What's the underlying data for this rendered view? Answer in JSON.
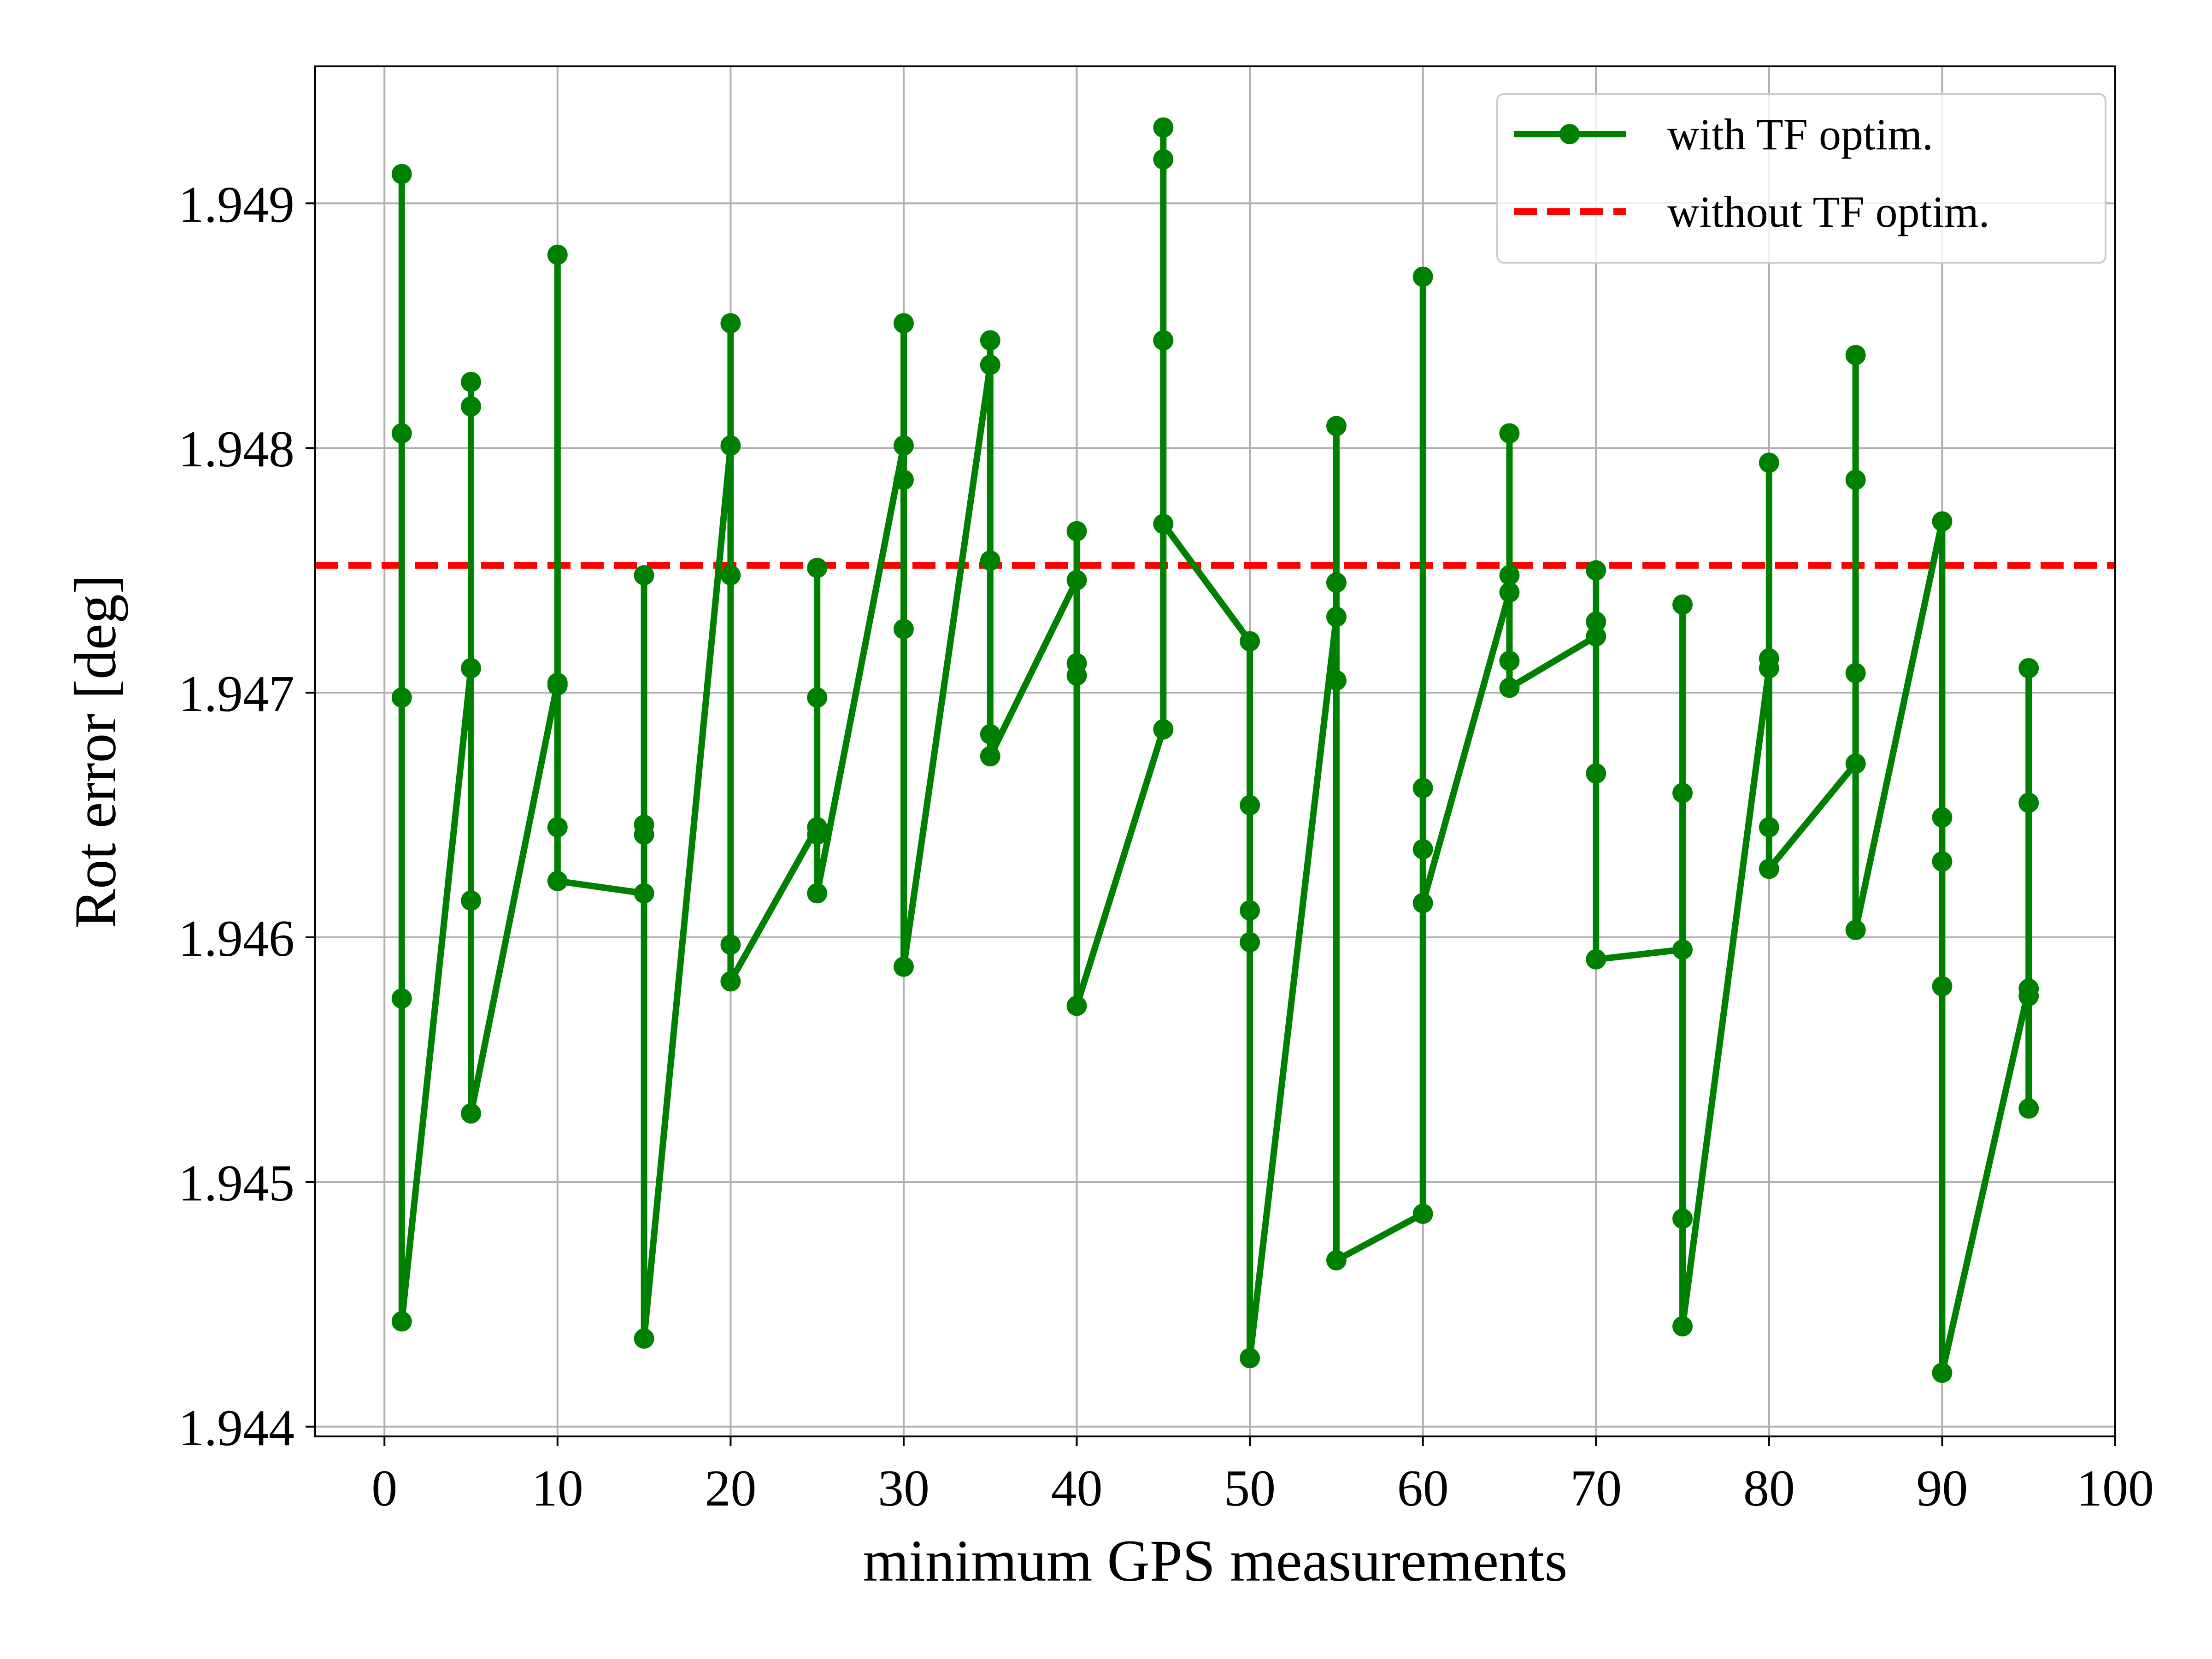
{
  "chart_data": {
    "type": "line",
    "xlabel": "minimum GPS measurements",
    "ylabel": "Rot error [deg]",
    "xlim": [
      -4,
      100
    ],
    "ylim": [
      1.94396,
      1.94956
    ],
    "x_ticks": [
      "0",
      "10",
      "20",
      "30",
      "40",
      "50",
      "60",
      "70",
      "80",
      "90",
      "100"
    ],
    "y_ticks": [
      "1.944",
      "1.945",
      "1.946",
      "1.947",
      "1.948",
      "1.949"
    ],
    "grid": true,
    "legend_position": "top-right",
    "series": [
      {
        "name": "with TF optim.",
        "color": "#008000",
        "style": "solid",
        "marker": "circle",
        "points": [
          [
            1,
            1.94912
          ],
          [
            1,
            1.94806
          ],
          [
            1,
            1.94698
          ],
          [
            1,
            1.94575
          ],
          [
            1,
            1.94443
          ],
          [
            5,
            1.9471
          ],
          [
            5,
            1.94827
          ],
          [
            5,
            1.94817
          ],
          [
            5,
            1.94615
          ],
          [
            5,
            1.94528
          ],
          [
            10,
            1.94704
          ],
          [
            10,
            1.94879
          ],
          [
            10,
            1.94703
          ],
          [
            10,
            1.94645
          ],
          [
            10,
            1.94623
          ],
          [
            15,
            1.94618
          ],
          [
            15,
            1.94748
          ],
          [
            15,
            1.94646
          ],
          [
            15,
            1.94642
          ],
          [
            15,
            1.94436
          ],
          [
            20,
            1.94801
          ],
          [
            20,
            1.94851
          ],
          [
            20,
            1.94748
          ],
          [
            20,
            1.94597
          ],
          [
            20,
            1.94582
          ],
          [
            25,
            1.94645
          ],
          [
            25,
            1.94751
          ],
          [
            25,
            1.94698
          ],
          [
            25,
            1.94642
          ],
          [
            25,
            1.94618
          ],
          [
            30,
            1.94801
          ],
          [
            30,
            1.94851
          ],
          [
            30,
            1.94787
          ],
          [
            30,
            1.94726
          ],
          [
            30,
            1.94588
          ],
          [
            35,
            1.94834
          ],
          [
            35,
            1.94844
          ],
          [
            35,
            1.94754
          ],
          [
            35,
            1.94683
          ],
          [
            35,
            1.94674
          ],
          [
            40,
            1.94746
          ],
          [
            40,
            1.94766
          ],
          [
            40,
            1.94712
          ],
          [
            40,
            1.94707
          ],
          [
            40,
            1.94572
          ],
          [
            45,
            1.94685
          ],
          [
            45,
            1.94931
          ],
          [
            45,
            1.94918
          ],
          [
            45,
            1.94844
          ],
          [
            45,
            1.94769
          ],
          [
            50,
            1.94721
          ],
          [
            50,
            1.94654
          ],
          [
            50,
            1.94611
          ],
          [
            50,
            1.94598
          ],
          [
            50,
            1.94428
          ],
          [
            55,
            1.94731
          ],
          [
            55,
            1.94809
          ],
          [
            55,
            1.94745
          ],
          [
            55,
            1.94705
          ],
          [
            55,
            1.94468
          ],
          [
            60,
            1.94487
          ],
          [
            60,
            1.9487
          ],
          [
            60,
            1.94661
          ],
          [
            60,
            1.94636
          ],
          [
            60,
            1.94614
          ],
          [
            65,
            1.94741
          ],
          [
            65,
            1.94806
          ],
          [
            65,
            1.94748
          ],
          [
            65,
            1.94713
          ],
          [
            65,
            1.94702
          ],
          [
            70,
            1.94723
          ],
          [
            70,
            1.9475
          ],
          [
            70,
            1.94729
          ],
          [
            70,
            1.94667
          ],
          [
            70,
            1.94591
          ],
          [
            75,
            1.94595
          ],
          [
            75,
            1.94736
          ],
          [
            75,
            1.94659
          ],
          [
            75,
            1.94485
          ],
          [
            75,
            1.94441
          ],
          [
            80,
            1.9471
          ],
          [
            80,
            1.94794
          ],
          [
            80,
            1.94714
          ],
          [
            80,
            1.94645
          ],
          [
            80,
            1.94628
          ],
          [
            85,
            1.94671
          ],
          [
            85,
            1.94838
          ],
          [
            85,
            1.94787
          ],
          [
            85,
            1.94708
          ],
          [
            85,
            1.94603
          ],
          [
            90,
            1.9477
          ],
          [
            90,
            1.94649
          ],
          [
            90,
            1.94631
          ],
          [
            90,
            1.9458
          ],
          [
            90,
            1.94422
          ],
          [
            95,
            1.94579
          ],
          [
            95,
            1.9471
          ],
          [
            95,
            1.94655
          ],
          [
            95,
            1.94576
          ],
          [
            95,
            1.9453
          ]
        ]
      },
      {
        "name": "without TF optim.",
        "color": "#ff0000",
        "style": "dashed",
        "marker": "none",
        "y": 1.94752
      }
    ]
  }
}
